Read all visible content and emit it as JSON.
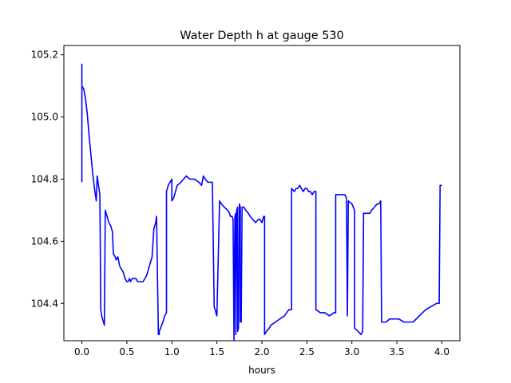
{
  "chart_data": {
    "type": "line",
    "title": "Water Depth h at gauge 530",
    "xlabel": "hours",
    "ylabel": "",
    "xlim": [
      -0.2,
      4.2
    ],
    "ylim": [
      104.28,
      105.23
    ],
    "xticks": [
      0.0,
      0.5,
      1.0,
      1.5,
      2.0,
      2.5,
      3.0,
      3.5,
      4.0
    ],
    "xtick_labels": [
      "0.0",
      "0.5",
      "1.0",
      "1.5",
      "2.0",
      "2.5",
      "3.0",
      "3.5",
      "4.0"
    ],
    "yticks": [
      104.4,
      104.6,
      104.8,
      105.0,
      105.2
    ],
    "ytick_labels": [
      "104.4",
      "104.6",
      "104.8",
      "105.0",
      "105.2"
    ],
    "grid": false,
    "series": [
      {
        "color": "#0000ff",
        "x": [
          0.0,
          0.0,
          0.0,
          0.0,
          0.02,
          0.04,
          0.06,
          0.08,
          0.1,
          0.12,
          0.14,
          0.16,
          0.17,
          0.18,
          0.2,
          0.21,
          0.22,
          0.22,
          0.24,
          0.25,
          0.26,
          0.26,
          0.28,
          0.3,
          0.32,
          0.34,
          0.35,
          0.35,
          0.37,
          0.38,
          0.4,
          0.42,
          0.44,
          0.46,
          0.48,
          0.5,
          0.51,
          0.53,
          0.54,
          0.56,
          0.58,
          0.6,
          0.62,
          0.65,
          0.68,
          0.7,
          0.72,
          0.74,
          0.76,
          0.78,
          0.8,
          0.82,
          0.83,
          0.85,
          0.86,
          0.86,
          0.9,
          0.92,
          0.94,
          0.94,
          0.96,
          0.98,
          1.0,
          1.0,
          1.02,
          1.04,
          1.06,
          1.1,
          1.13,
          1.16,
          1.2,
          1.25,
          1.3,
          1.33,
          1.35,
          1.37,
          1.4,
          1.45,
          1.47,
          1.48,
          1.5,
          1.53,
          1.55,
          1.58,
          1.62,
          1.64,
          1.65,
          1.66,
          1.67,
          1.68,
          1.69,
          1.69,
          1.7,
          1.71,
          1.71,
          1.72,
          1.73,
          1.73,
          1.74,
          1.75,
          1.75,
          1.76,
          1.76,
          1.77,
          1.78,
          1.8,
          1.82,
          1.85,
          1.87,
          1.9,
          1.93,
          1.96,
          1.98,
          2.0,
          2.01,
          2.02,
          2.03,
          2.03,
          2.05,
          2.08,
          2.1,
          2.15,
          2.2,
          2.25,
          2.3,
          2.33,
          2.33,
          2.36,
          2.38,
          2.4,
          2.42,
          2.44,
          2.46,
          2.48,
          2.5,
          2.52,
          2.54,
          2.56,
          2.58,
          2.6,
          2.6,
          2.65,
          2.7,
          2.75,
          2.8,
          2.82,
          2.82,
          2.84,
          2.86,
          2.88,
          2.9,
          2.92,
          2.94,
          2.94,
          2.95,
          2.96,
          3.0,
          3.03,
          3.03,
          3.07,
          3.1,
          3.12,
          3.13,
          3.15,
          3.18,
          3.2,
          3.22,
          3.25,
          3.28,
          3.3,
          3.32,
          3.33,
          3.33,
          3.38,
          3.42,
          3.48,
          3.52,
          3.58,
          3.62,
          3.68,
          3.75,
          3.82,
          3.88,
          3.94,
          3.97,
          3.98,
          3.98,
          3.99,
          4.0
        ],
        "y": [
          104.79,
          105.17,
          105.17,
          105.1,
          105.09,
          105.06,
          105.01,
          104.94,
          104.88,
          104.82,
          104.77,
          104.73,
          104.81,
          104.79,
          104.75,
          104.38,
          104.36,
          104.36,
          104.34,
          104.33,
          104.7,
          104.7,
          104.68,
          104.66,
          104.65,
          104.63,
          104.56,
          104.56,
          104.55,
          104.54,
          104.55,
          104.52,
          104.51,
          104.5,
          104.48,
          104.47,
          104.47,
          104.48,
          104.47,
          104.48,
          104.48,
          104.48,
          104.47,
          104.47,
          104.47,
          104.48,
          104.49,
          104.51,
          104.53,
          104.55,
          104.64,
          104.66,
          104.68,
          104.3,
          104.3,
          104.31,
          104.34,
          104.36,
          104.37,
          104.76,
          104.78,
          104.79,
          104.8,
          104.73,
          104.74,
          104.76,
          104.78,
          104.79,
          104.8,
          104.81,
          104.8,
          104.8,
          104.79,
          104.78,
          104.81,
          104.8,
          104.79,
          104.79,
          104.39,
          104.38,
          104.36,
          104.73,
          104.72,
          104.71,
          104.7,
          104.69,
          104.68,
          104.68,
          104.68,
          104.67,
          104.28,
          104.29,
          104.68,
          104.69,
          104.3,
          104.7,
          104.71,
          104.31,
          104.32,
          104.72,
          104.72,
          104.71,
          104.34,
          104.34,
          104.71,
          104.71,
          104.7,
          104.69,
          104.68,
          104.67,
          104.66,
          104.67,
          104.67,
          104.66,
          104.67,
          104.68,
          104.68,
          104.3,
          104.31,
          104.32,
          104.33,
          104.34,
          104.35,
          104.36,
          104.38,
          104.38,
          104.77,
          104.76,
          104.77,
          104.77,
          104.78,
          104.77,
          104.76,
          104.77,
          104.77,
          104.76,
          104.76,
          104.75,
          104.76,
          104.76,
          104.38,
          104.37,
          104.37,
          104.36,
          104.37,
          104.37,
          104.75,
          104.75,
          104.75,
          104.75,
          104.75,
          104.75,
          104.74,
          104.74,
          104.36,
          104.73,
          104.72,
          104.7,
          104.32,
          104.31,
          104.3,
          104.31,
          104.69,
          104.69,
          104.69,
          104.69,
          104.7,
          104.71,
          104.72,
          104.72,
          104.73,
          104.34,
          104.34,
          104.34,
          104.35,
          104.35,
          104.35,
          104.34,
          104.34,
          104.34,
          104.36,
          104.38,
          104.39,
          104.4,
          104.4,
          104.78,
          104.78,
          104.78,
          104.78
        ]
      }
    ]
  }
}
